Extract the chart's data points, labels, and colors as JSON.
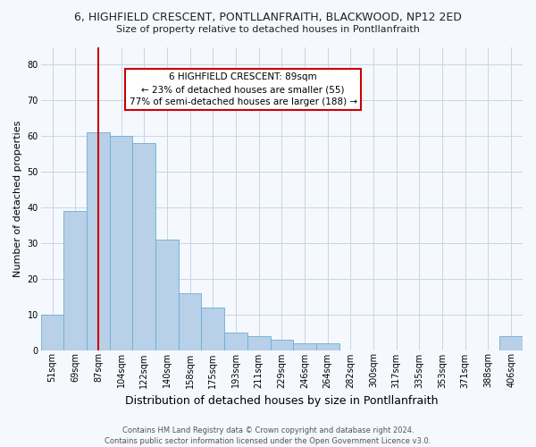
{
  "title": "6, HIGHFIELD CRESCENT, PONTLLANFRAITH, BLACKWOOD, NP12 2ED",
  "subtitle": "Size of property relative to detached houses in Pontllanfraith",
  "xlabel": "Distribution of detached houses by size in Pontllanfraith",
  "ylabel": "Number of detached properties",
  "categories": [
    "51sqm",
    "69sqm",
    "87sqm",
    "104sqm",
    "122sqm",
    "140sqm",
    "158sqm",
    "175sqm",
    "193sqm",
    "211sqm",
    "229sqm",
    "246sqm",
    "264sqm",
    "282sqm",
    "300sqm",
    "317sqm",
    "335sqm",
    "353sqm",
    "371sqm",
    "388sqm",
    "406sqm"
  ],
  "values": [
    10,
    39,
    61,
    60,
    58,
    31,
    16,
    12,
    5,
    4,
    3,
    2,
    2,
    0,
    0,
    0,
    0,
    0,
    0,
    0,
    4
  ],
  "bar_color": "#b8d0e8",
  "bar_edge_color": "#6aaed6",
  "red_line_index": 2,
  "annotation_title": "6 HIGHFIELD CRESCENT: 89sqm",
  "annotation_line1": "← 23% of detached houses are smaller (55)",
  "annotation_line2": "77% of semi-detached houses are larger (188) →",
  "annotation_box_color": "#ffffff",
  "annotation_box_edge": "#cc0000",
  "red_line_color": "#cc0000",
  "footer1": "Contains HM Land Registry data © Crown copyright and database right 2024.",
  "footer2": "Contains public sector information licensed under the Open Government Licence v3.0.",
  "ylim": [
    0,
    85
  ],
  "yticks": [
    0,
    10,
    20,
    30,
    40,
    50,
    60,
    70,
    80
  ],
  "bg_color": "#f5f8fd",
  "grid_color": "#c8d4e8",
  "title_fontsize": 9,
  "subtitle_fontsize": 8,
  "ylabel_fontsize": 8,
  "xlabel_fontsize": 9,
  "tick_fontsize": 7,
  "footer_fontsize": 6,
  "ann_fontsize": 7.5
}
